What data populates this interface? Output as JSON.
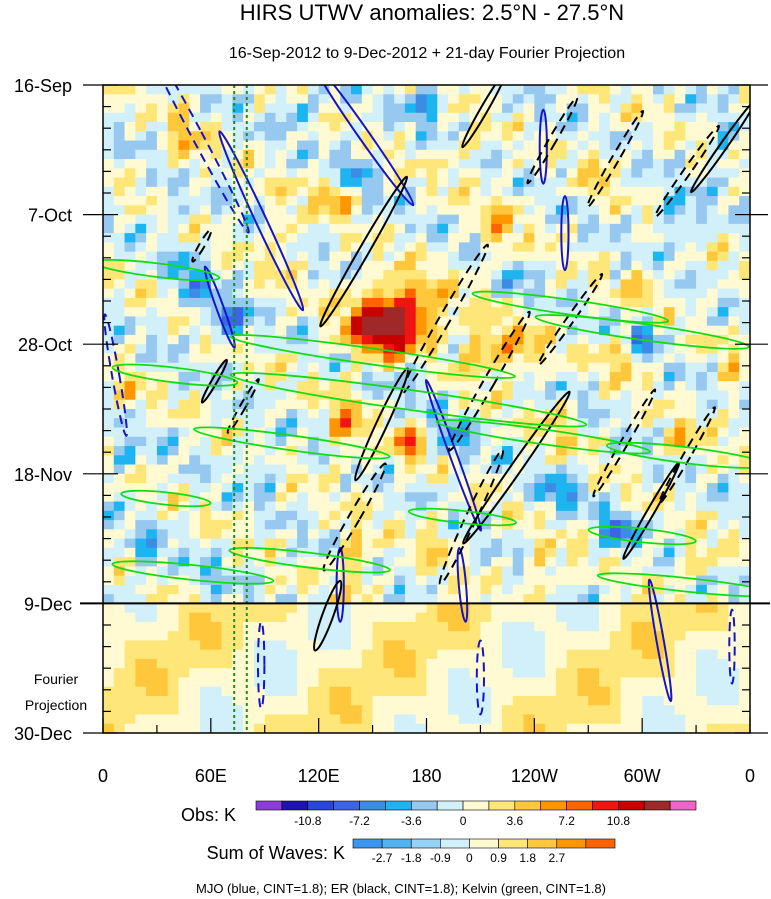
{
  "chart_data": {
    "type": "heatmap",
    "title": "HIRS UTWV anomalies: 2.5°N - 27.5°N",
    "subtitle": "16-Sep-2012 to 9-Dec-2012 + 21-day Fourier Projection",
    "x_ticks": [
      "0",
      "60E",
      "120E",
      "180",
      "120W",
      "60W",
      "0"
    ],
    "x_tick_values": [
      0,
      60,
      120,
      180,
      240,
      300,
      360
    ],
    "xlim": [
      0,
      360
    ],
    "y_ticks": [
      "16-Sep",
      "7-Oct",
      "28-Oct",
      "18-Nov",
      "9-Dec",
      "30-Dec"
    ],
    "y_tick_values": [
      0,
      21,
      42,
      63,
      84,
      105
    ],
    "ylim": [
      0,
      105
    ],
    "y_unit": "days since 16-Sep-2012",
    "obs_end_day": 84,
    "projection_label": [
      "Fourier",
      "Projection"
    ],
    "reference_longitudes": [
      73,
      80
    ],
    "legend_obs": {
      "label": "Obs: K",
      "ticks": [
        "-10.8",
        "-7.2",
        "-3.6",
        "0",
        "3.6",
        "7.2",
        "10.8"
      ],
      "levels": [
        -12.6,
        -10.8,
        -9.0,
        -7.2,
        -5.4,
        -3.6,
        -1.8,
        0,
        1.8,
        3.6,
        5.4,
        7.2,
        9.0,
        10.8,
        12.6
      ],
      "colors": [
        "#8c3cdc",
        "#1e14b4",
        "#2846dc",
        "#3c64e6",
        "#3c8ce6",
        "#1eb4f0",
        "#96c8f0",
        "#d2f0fa",
        "#fffad2",
        "#ffe678",
        "#ffc83c",
        "#ff9600",
        "#ff6400",
        "#f01414",
        "#c80000",
        "#a02828",
        "#f064c8"
      ]
    },
    "legend_waves": {
      "label": "Sum of Waves: K",
      "ticks": [
        "-2.7",
        "-1.8",
        "-0.9",
        "0",
        "0.9",
        "1.8",
        "2.7"
      ],
      "colors": [
        "#3c96f0",
        "#50b4f0",
        "#96d2f5",
        "#d2f0fa",
        "#fffad2",
        "#ffe678",
        "#ffc83c",
        "#ff9600",
        "#ff6400"
      ]
    },
    "footnote": "MJO (blue, CINT=1.8); ER (black, CINT=1.8); Kelvin (green, CINT=1.8)",
    "series": [
      {
        "name": "MJO",
        "color": "#1414c8"
      },
      {
        "name": "ER",
        "color": "#000000"
      },
      {
        "name": "Kelvin",
        "color": "#14dc14"
      }
    ]
  }
}
